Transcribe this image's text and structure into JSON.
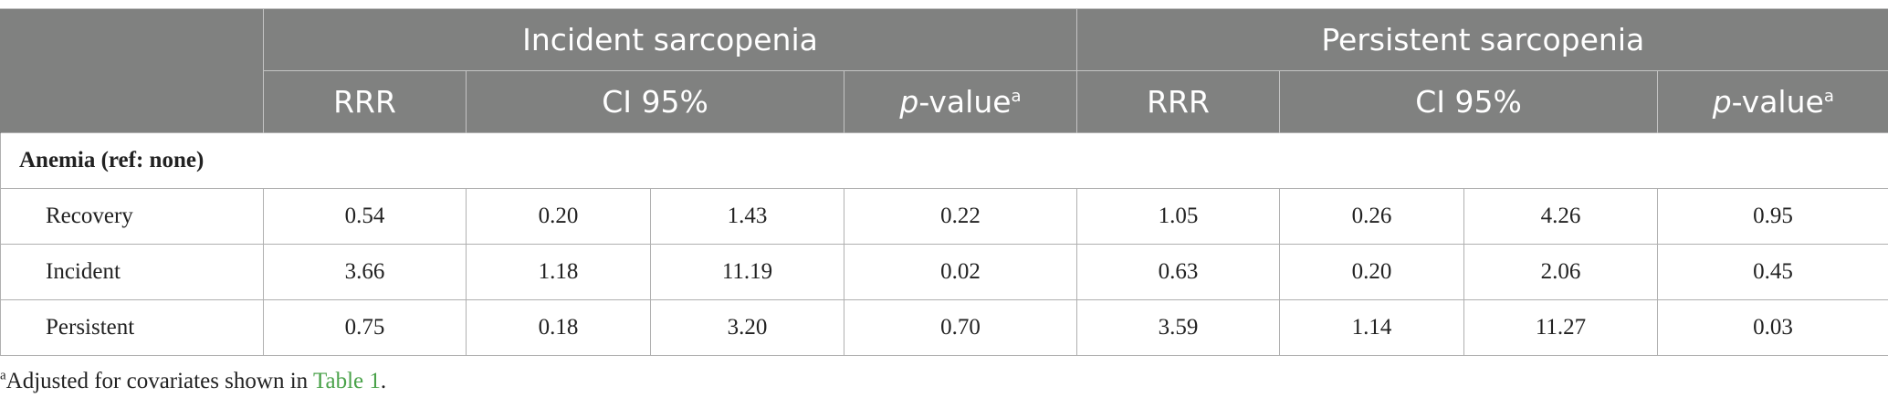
{
  "table": {
    "group_headers": [
      "Incident sarcopenia",
      "Persistent sarcopenia"
    ],
    "sub_headers": {
      "rrr": "RRR",
      "ci": "CI 95%",
      "pvalue_italic": "p",
      "pvalue_rest": "-value",
      "pvalue_sup": "a"
    },
    "section_label": "Anemia (ref: none)",
    "rows": [
      {
        "label": "Recovery",
        "cells": [
          "0.54",
          "0.20",
          "1.43",
          "0.22",
          "1.05",
          "0.26",
          "4.26",
          "0.95"
        ]
      },
      {
        "label": "Incident",
        "cells": [
          "3.66",
          "1.18",
          "11.19",
          "0.02",
          "0.63",
          "0.20",
          "2.06",
          "0.45"
        ]
      },
      {
        "label": "Persistent",
        "cells": [
          "0.75",
          "0.18",
          "3.20",
          "0.70",
          "3.59",
          "1.14",
          "11.27",
          "0.03"
        ]
      }
    ]
  },
  "footnote": {
    "sup": "a",
    "text": "Adjusted for covariates shown in ",
    "link": "Table 1",
    "end": "."
  }
}
